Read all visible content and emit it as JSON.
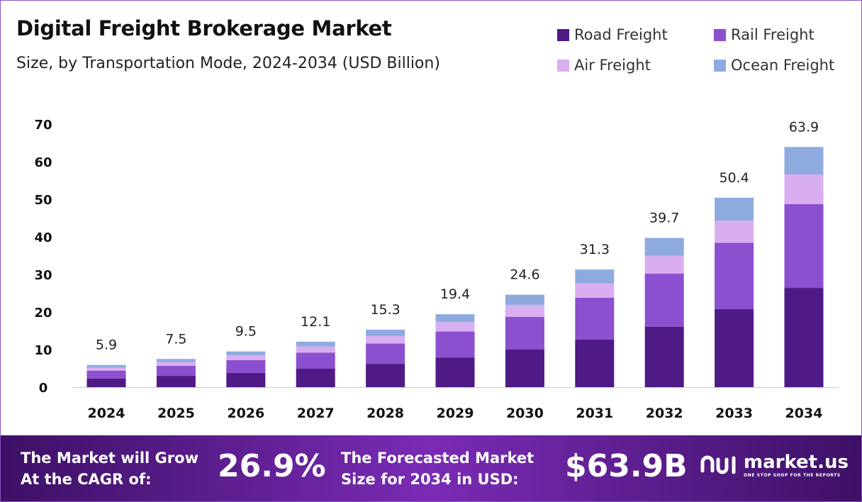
{
  "header": {
    "title": "Digital Freight Brokerage Market",
    "subtitle": "Size, by Transportation Mode, 2024-2034 (USD Billion)"
  },
  "legend": [
    {
      "label": "Road Freight",
      "color": "#4e1a85"
    },
    {
      "label": "Rail Freight",
      "color": "#8b4fcf"
    },
    {
      "label": "Air Freight",
      "color": "#d9aef0"
    },
    {
      "label": "Ocean Freight",
      "color": "#8eaadf"
    }
  ],
  "chart_data": {
    "type": "bar",
    "stacked": true,
    "categories": [
      "2024",
      "2025",
      "2026",
      "2027",
      "2028",
      "2029",
      "2030",
      "2031",
      "2032",
      "2033",
      "2034"
    ],
    "series": [
      {
        "name": "Road Freight",
        "color": "#4e1a85",
        "values": [
          2.3,
          3.0,
          3.8,
          4.9,
          6.2,
          7.9,
          10.0,
          12.7,
          16.1,
          20.8,
          26.4
        ]
      },
      {
        "name": "Rail Freight",
        "color": "#8b4fcf",
        "values": [
          2.1,
          2.7,
          3.4,
          4.3,
          5.4,
          6.9,
          8.7,
          11.1,
          14.1,
          17.6,
          22.3
        ]
      },
      {
        "name": "Air Freight",
        "color": "#d9aef0",
        "values": [
          0.8,
          1.0,
          1.3,
          1.6,
          2.0,
          2.5,
          3.2,
          3.8,
          4.8,
          5.9,
          7.9
        ]
      },
      {
        "name": "Ocean Freight",
        "color": "#8eaadf",
        "values": [
          0.7,
          0.8,
          1.0,
          1.3,
          1.7,
          2.1,
          2.7,
          3.7,
          4.7,
          6.1,
          7.3
        ]
      }
    ],
    "totals": [
      "5.9",
      "7.5",
      "9.5",
      "12.1",
      "15.3",
      "19.4",
      "24.6",
      "31.3",
      "39.7",
      "50.4",
      "63.9"
    ],
    "yticks": [
      "0",
      "10",
      "20",
      "30",
      "40",
      "50",
      "60",
      "70"
    ],
    "ylim": [
      0,
      70
    ],
    "grid": false,
    "legend_position": "top-right"
  },
  "footer": {
    "cagr_label_line1": "The Market will Grow",
    "cagr_label_line2": "At the CAGR of:",
    "cagr_value": "26.9%",
    "forecast_label_line1": "The Forecasted Market",
    "forecast_label_line2": "Size for 2034 in USD:",
    "forecast_value": "$63.9B",
    "brand_name": "market.us",
    "brand_tagline": "ONE STOP SHOP FOR THE REPORTS"
  }
}
